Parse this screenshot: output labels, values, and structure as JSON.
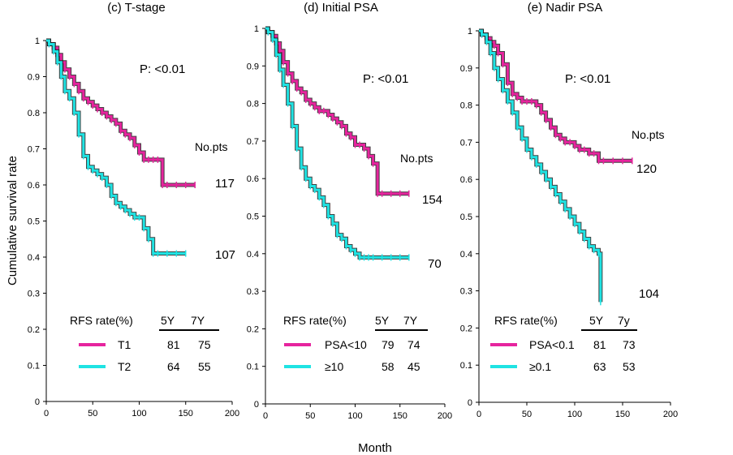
{
  "figure": {
    "ylabel": "Cumulative survival rate",
    "xlabel": "Month"
  },
  "colors": {
    "magenta": "#e6249e",
    "cyan": "#1fe3e3",
    "axis": "#000000"
  },
  "chart_data": [
    {
      "type": "line",
      "title": "(c) T-stage",
      "xlabel": "Month",
      "ylabel": "Cumulative survival rate",
      "xlim": [
        0,
        200
      ],
      "ylim": [
        0,
        1
      ],
      "xticks": [
        "0",
        "50",
        "100",
        "150",
        "200"
      ],
      "yticks": [
        "0",
        "0.1",
        "0.2",
        "0.3",
        "0.4",
        "0.5",
        "0.6",
        "0.7",
        "0.8",
        "0.9",
        "1"
      ],
      "p_value": "P: <0.01",
      "nopts_label": "No.pts",
      "table_header": {
        "label": "RFS rate(%)",
        "y5": "5Y",
        "y7": "7Y"
      },
      "series": [
        {
          "name": "T1",
          "color": "magenta",
          "n": "117",
          "rate5": "81",
          "rate7": "75",
          "x": [
            0,
            3,
            8,
            12,
            16,
            20,
            25,
            30,
            35,
            40,
            45,
            50,
            55,
            60,
            65,
            70,
            75,
            80,
            85,
            90,
            95,
            100,
            105,
            110,
            115,
            120,
            125,
            130,
            140,
            150,
            160
          ],
          "y": [
            1,
            0.99,
            0.98,
            0.96,
            0.94,
            0.92,
            0.9,
            0.88,
            0.86,
            0.84,
            0.83,
            0.82,
            0.81,
            0.8,
            0.79,
            0.78,
            0.77,
            0.75,
            0.74,
            0.73,
            0.71,
            0.69,
            0.67,
            0.67,
            0.67,
            0.67,
            0.6,
            0.6,
            0.6,
            0.6,
            0.6
          ]
        },
        {
          "name": "T2",
          "color": "cyan",
          "n": "107",
          "rate5": "64",
          "rate7": "55",
          "x": [
            0,
            3,
            8,
            12,
            16,
            20,
            25,
            30,
            35,
            40,
            45,
            50,
            55,
            60,
            65,
            70,
            75,
            80,
            85,
            90,
            95,
            100,
            105,
            110,
            115,
            120,
            130,
            140,
            150
          ],
          "y": [
            1,
            0.99,
            0.97,
            0.94,
            0.9,
            0.86,
            0.84,
            0.8,
            0.74,
            0.68,
            0.65,
            0.64,
            0.63,
            0.62,
            0.6,
            0.57,
            0.55,
            0.54,
            0.53,
            0.52,
            0.51,
            0.51,
            0.48,
            0.45,
            0.41,
            0.41,
            0.41,
            0.41,
            0.41
          ]
        }
      ]
    },
    {
      "type": "line",
      "title": "(d) Initial PSA",
      "xlabel": "Month",
      "ylabel": "Cumulative survival rate",
      "xlim": [
        0,
        200
      ],
      "ylim": [
        0,
        1
      ],
      "xticks": [
        "0",
        "50",
        "100",
        "150",
        "200"
      ],
      "yticks": [
        "0",
        "0.1",
        "0.2",
        "0.3",
        "0.4",
        "0.5",
        "0.6",
        "0.7",
        "0.8",
        "0.9",
        "1"
      ],
      "p_value": "P: <0.01",
      "nopts_label": "No.pts",
      "table_header": {
        "label": "RFS rate(%)",
        "y5": "5Y",
        "y7": "7Y"
      },
      "series": [
        {
          "name": "PSA<10",
          "color": "magenta",
          "n": "154",
          "rate5": "79",
          "rate7": "74",
          "x": [
            0,
            3,
            8,
            12,
            16,
            20,
            25,
            30,
            35,
            40,
            45,
            50,
            55,
            60,
            65,
            70,
            75,
            80,
            85,
            90,
            95,
            100,
            105,
            110,
            115,
            120,
            125,
            130,
            140,
            150,
            160
          ],
          "y": [
            1,
            0.99,
            0.98,
            0.96,
            0.94,
            0.91,
            0.88,
            0.86,
            0.84,
            0.83,
            0.81,
            0.8,
            0.79,
            0.78,
            0.78,
            0.77,
            0.76,
            0.75,
            0.74,
            0.72,
            0.71,
            0.69,
            0.69,
            0.68,
            0.66,
            0.64,
            0.56,
            0.56,
            0.56,
            0.56,
            0.56
          ]
        },
        {
          "name": "≥10",
          "color": "cyan",
          "n": "70",
          "rate5": "58",
          "rate7": "45",
          "x": [
            0,
            3,
            8,
            12,
            16,
            20,
            25,
            30,
            35,
            40,
            45,
            50,
            55,
            60,
            65,
            70,
            75,
            80,
            85,
            90,
            95,
            100,
            105,
            110,
            115,
            120,
            130,
            140,
            150,
            160
          ],
          "y": [
            1,
            0.99,
            0.97,
            0.93,
            0.89,
            0.85,
            0.8,
            0.74,
            0.68,
            0.63,
            0.6,
            0.58,
            0.57,
            0.55,
            0.53,
            0.5,
            0.48,
            0.45,
            0.44,
            0.42,
            0.41,
            0.4,
            0.39,
            0.39,
            0.39,
            0.39,
            0.39,
            0.39,
            0.39,
            0.39
          ]
        }
      ]
    },
    {
      "type": "line",
      "title": "(e) Nadir PSA",
      "xlabel": "Month",
      "ylabel": "Cumulative survival rate",
      "xlim": [
        0,
        200
      ],
      "ylim": [
        0,
        1
      ],
      "xticks": [
        "0",
        "50",
        "100",
        "150",
        "200"
      ],
      "yticks": [
        "0",
        "0.1",
        "0.2",
        "0.3",
        "0.4",
        "0.5",
        "0.6",
        "0.7",
        "0.8",
        "0.9",
        "1"
      ],
      "p_value": "P: <0.01",
      "nopts_label": "No.pts",
      "table_header": {
        "label": "RFS rate(%)",
        "y5": "5Y",
        "y7": "7y"
      },
      "series": [
        {
          "name": "PSA<0.1",
          "color": "magenta",
          "n": "120",
          "rate5": "81",
          "rate7": "73",
          "x": [
            0,
            3,
            8,
            12,
            16,
            20,
            25,
            30,
            35,
            40,
            45,
            50,
            55,
            60,
            65,
            70,
            75,
            80,
            85,
            90,
            95,
            100,
            105,
            110,
            115,
            120,
            125,
            130,
            140,
            150,
            160
          ],
          "y": [
            1,
            0.99,
            0.98,
            0.97,
            0.96,
            0.94,
            0.91,
            0.86,
            0.83,
            0.82,
            0.81,
            0.81,
            0.81,
            0.8,
            0.78,
            0.76,
            0.74,
            0.72,
            0.71,
            0.7,
            0.7,
            0.69,
            0.68,
            0.68,
            0.67,
            0.67,
            0.65,
            0.65,
            0.65,
            0.65,
            0.65
          ]
        },
        {
          "name": "≥0.1",
          "color": "cyan",
          "n": "104",
          "rate5": "63",
          "rate7": "53",
          "x": [
            0,
            3,
            8,
            12,
            16,
            20,
            25,
            30,
            35,
            40,
            45,
            50,
            55,
            60,
            65,
            70,
            75,
            80,
            85,
            90,
            95,
            100,
            105,
            110,
            115,
            120,
            125,
            127
          ],
          "y": [
            1,
            0.99,
            0.97,
            0.94,
            0.9,
            0.87,
            0.84,
            0.81,
            0.78,
            0.74,
            0.71,
            0.68,
            0.66,
            0.64,
            0.62,
            0.6,
            0.58,
            0.56,
            0.54,
            0.52,
            0.5,
            0.48,
            0.46,
            0.44,
            0.42,
            0.41,
            0.4,
            0.27
          ]
        }
      ]
    }
  ]
}
